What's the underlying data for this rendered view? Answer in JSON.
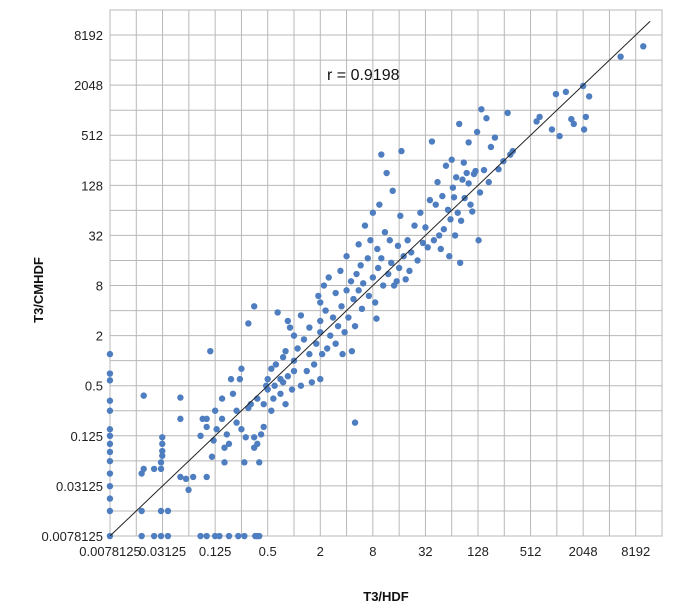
{
  "chart_data": {
    "type": "scatter",
    "title": "",
    "xlabel": "T3/HDF",
    "ylabel": "T3/CMHDF",
    "x_scale": "log2",
    "y_scale": "log2",
    "xlim": [
      0.0078125,
      16384
    ],
    "ylim": [
      0.0078125,
      16384
    ],
    "grid": true,
    "legend": "none",
    "x_ticks": [
      0.0078125,
      0.03125,
      0.125,
      0.5,
      2,
      8,
      32,
      128,
      512,
      2048,
      8192
    ],
    "x_tick_labels": [
      "0.0078125",
      "0.03125",
      "0.125",
      "0.5",
      "2",
      "8",
      "32",
      "128",
      "512",
      "2048",
      "8192"
    ],
    "y_ticks": [
      0.0078125,
      0.03125,
      0.125,
      0.5,
      2,
      8,
      32,
      128,
      512,
      2048,
      8192
    ],
    "y_tick_labels": [
      "0.0078125",
      "0.03125",
      "0.125",
      "0.5",
      "2",
      "8",
      "32",
      "128",
      "512",
      "2048",
      "8192"
    ],
    "annotation": "r = 0.9198",
    "colors": {
      "points": "#4f7ec0",
      "trend": "#222222",
      "grid": "#b8b8b8"
    },
    "trendline": {
      "x": [
        0.0078125,
        12000
      ],
      "y": [
        0.0078125,
        12000
      ]
    },
    "points": [
      [
        0.0078,
        0.0078
      ],
      [
        0.0078,
        0.0156
      ],
      [
        0.0078,
        0.022
      ],
      [
        0.0078,
        0.031
      ],
      [
        0.0078,
        0.044
      ],
      [
        0.0078,
        0.062
      ],
      [
        0.0078,
        0.08
      ],
      [
        0.0078,
        0.1
      ],
      [
        0.0078,
        0.125
      ],
      [
        0.0078,
        0.15
      ],
      [
        0.0078,
        0.25
      ],
      [
        0.0078,
        0.33
      ],
      [
        0.0078,
        0.58
      ],
      [
        0.0078,
        0.7
      ],
      [
        0.0078,
        1.2
      ],
      [
        0.018,
        0.0078
      ],
      [
        0.025,
        0.0078
      ],
      [
        0.03,
        0.0078
      ],
      [
        0.036,
        0.0078
      ],
      [
        0.018,
        0.0156
      ],
      [
        0.03,
        0.0156
      ],
      [
        0.036,
        0.0156
      ],
      [
        0.018,
        0.044
      ],
      [
        0.019,
        0.05
      ],
      [
        0.025,
        0.05
      ],
      [
        0.03,
        0.05
      ],
      [
        0.03,
        0.06
      ],
      [
        0.031,
        0.072
      ],
      [
        0.031,
        0.082
      ],
      [
        0.031,
        0.1
      ],
      [
        0.031,
        0.12
      ],
      [
        0.019,
        0.38
      ],
      [
        0.05,
        0.04
      ],
      [
        0.05,
        0.2
      ],
      [
        0.05,
        0.36
      ],
      [
        0.058,
        0.038
      ],
      [
        0.062,
        0.028
      ],
      [
        0.07,
        0.04
      ],
      [
        0.085,
        0.125
      ],
      [
        0.09,
        0.2
      ],
      [
        0.085,
        0.0078
      ],
      [
        0.1,
        0.0078
      ],
      [
        0.125,
        0.0078
      ],
      [
        0.14,
        0.0078
      ],
      [
        0.18,
        0.0078
      ],
      [
        0.23,
        0.0078
      ],
      [
        0.27,
        0.0078
      ],
      [
        0.36,
        0.0078
      ],
      [
        0.38,
        0.0078
      ],
      [
        0.4,
        0.0078
      ],
      [
        0.1,
        0.04
      ],
      [
        0.1,
        0.16
      ],
      [
        0.1,
        0.2
      ],
      [
        0.11,
        1.3
      ],
      [
        0.115,
        0.07
      ],
      [
        0.12,
        0.11
      ],
      [
        0.125,
        0.25
      ],
      [
        0.13,
        0.15
      ],
      [
        0.15,
        0.35
      ],
      [
        0.15,
        0.2
      ],
      [
        0.16,
        0.09
      ],
      [
        0.16,
        0.06
      ],
      [
        0.17,
        0.13
      ],
      [
        0.18,
        0.1
      ],
      [
        0.19,
        0.6
      ],
      [
        0.2,
        0.4
      ],
      [
        0.22,
        0.18
      ],
      [
        0.22,
        0.25
      ],
      [
        0.24,
        0.6
      ],
      [
        0.25,
        0.15
      ],
      [
        0.25,
        0.8
      ],
      [
        0.27,
        0.06
      ],
      [
        0.28,
        0.12
      ],
      [
        0.3,
        0.27
      ],
      [
        0.3,
        2.8
      ],
      [
        0.32,
        0.3
      ],
      [
        0.35,
        0.09
      ],
      [
        0.35,
        0.12
      ],
      [
        0.35,
        4.5
      ],
      [
        0.38,
        0.35
      ],
      [
        0.38,
        0.1
      ],
      [
        0.4,
        0.06
      ],
      [
        0.42,
        0.13
      ],
      [
        0.45,
        0.16
      ],
      [
        0.45,
        0.3
      ],
      [
        0.48,
        0.5
      ],
      [
        0.5,
        0.45
      ],
      [
        0.5,
        0.6
      ],
      [
        0.55,
        0.25
      ],
      [
        0.55,
        0.8
      ],
      [
        0.58,
        0.35
      ],
      [
        0.6,
        0.5
      ],
      [
        0.62,
        0.9
      ],
      [
        0.65,
        3.8
      ],
      [
        0.7,
        0.6
      ],
      [
        0.7,
        0.4
      ],
      [
        0.75,
        0.55
      ],
      [
        0.75,
        1.1
      ],
      [
        0.8,
        0.3
      ],
      [
        0.8,
        1.3
      ],
      [
        0.85,
        0.65
      ],
      [
        0.85,
        3
      ],
      [
        0.9,
        2.5
      ],
      [
        0.95,
        0.45
      ],
      [
        1,
        1
      ],
      [
        1,
        0.75
      ],
      [
        1,
        2
      ],
      [
        1.1,
        1.4
      ],
      [
        1.2,
        0.5
      ],
      [
        1.2,
        3.5
      ],
      [
        1.3,
        1.8
      ],
      [
        1.4,
        0.75
      ],
      [
        1.5,
        1.2
      ],
      [
        1.5,
        2.5
      ],
      [
        1.6,
        0.55
      ],
      [
        1.7,
        0.9
      ],
      [
        1.8,
        1.6
      ],
      [
        1.9,
        6
      ],
      [
        2,
        2.2
      ],
      [
        2,
        3
      ],
      [
        2,
        0.6
      ],
      [
        2,
        5
      ],
      [
        2.1,
        1.2
      ],
      [
        2.2,
        8
      ],
      [
        2.3,
        4
      ],
      [
        2.4,
        1.4
      ],
      [
        2.5,
        10
      ],
      [
        2.6,
        2
      ],
      [
        2.8,
        3.3
      ],
      [
        3,
        6.5
      ],
      [
        3,
        1.6
      ],
      [
        3.2,
        2.6
      ],
      [
        3.4,
        12
      ],
      [
        3.5,
        4.5
      ],
      [
        3.6,
        1.2
      ],
      [
        3.8,
        2.2
      ],
      [
        4,
        7
      ],
      [
        4,
        18
      ],
      [
        4.2,
        3.3
      ],
      [
        4.5,
        9
      ],
      [
        4.6,
        1.3
      ],
      [
        4.8,
        5.5
      ],
      [
        5,
        0.18
      ],
      [
        5,
        2.6
      ],
      [
        5.2,
        11
      ],
      [
        5.5,
        7
      ],
      [
        5.5,
        25
      ],
      [
        5.8,
        14
      ],
      [
        6,
        4.2
      ],
      [
        6.2,
        8.5
      ],
      [
        6.5,
        42
      ],
      [
        7,
        17
      ],
      [
        7.2,
        6
      ],
      [
        7.5,
        28
      ],
      [
        8,
        10
      ],
      [
        8,
        60
      ],
      [
        8.5,
        5
      ],
      [
        8.8,
        3.2
      ],
      [
        9,
        22
      ],
      [
        9.2,
        13
      ],
      [
        9.5,
        75
      ],
      [
        10,
        300
      ],
      [
        10,
        17
      ],
      [
        10.5,
        8
      ],
      [
        11,
        35
      ],
      [
        11.5,
        180
      ],
      [
        12,
        11
      ],
      [
        12.5,
        28
      ],
      [
        13,
        15
      ],
      [
        13.5,
        110
      ],
      [
        14,
        8
      ],
      [
        15,
        9
      ],
      [
        15.5,
        24
      ],
      [
        16,
        13
      ],
      [
        16.5,
        55
      ],
      [
        17,
        330
      ],
      [
        18,
        18
      ],
      [
        19,
        9.5
      ],
      [
        20,
        28
      ],
      [
        21,
        12
      ],
      [
        22,
        20
      ],
      [
        24,
        42
      ],
      [
        26,
        16
      ],
      [
        28,
        60
      ],
      [
        30,
        26
      ],
      [
        32,
        40
      ],
      [
        34,
        23
      ],
      [
        36,
        85
      ],
      [
        38,
        430
      ],
      [
        40,
        28
      ],
      [
        42,
        75
      ],
      [
        44,
        140
      ],
      [
        46,
        32
      ],
      [
        48,
        22
      ],
      [
        50,
        95
      ],
      [
        52,
        38
      ],
      [
        55,
        220
      ],
      [
        58,
        65
      ],
      [
        60,
        18
      ],
      [
        62,
        50
      ],
      [
        64,
        260
      ],
      [
        66,
        120
      ],
      [
        68,
        92
      ],
      [
        70,
        32
      ],
      [
        72,
        160
      ],
      [
        75,
        60
      ],
      [
        78,
        700
      ],
      [
        80,
        15
      ],
      [
        82,
        48
      ],
      [
        85,
        150
      ],
      [
        88,
        240
      ],
      [
        90,
        90
      ],
      [
        95,
        180
      ],
      [
        100,
        135
      ],
      [
        100,
        420
      ],
      [
        105,
        75
      ],
      [
        110,
        62
      ],
      [
        115,
        175
      ],
      [
        120,
        190
      ],
      [
        125,
        560
      ],
      [
        130,
        28
      ],
      [
        135,
        105
      ],
      [
        140,
        1050
      ],
      [
        150,
        195
      ],
      [
        160,
        820
      ],
      [
        170,
        140
      ],
      [
        180,
        370
      ],
      [
        200,
        480
      ],
      [
        220,
        200
      ],
      [
        250,
        250
      ],
      [
        280,
        950
      ],
      [
        300,
        300
      ],
      [
        320,
        330
      ],
      [
        600,
        750
      ],
      [
        650,
        850
      ],
      [
        900,
        600
      ],
      [
        1000,
        1600
      ],
      [
        1100,
        500
      ],
      [
        1300,
        1700
      ],
      [
        1500,
        800
      ],
      [
        1600,
        700
      ],
      [
        2048,
        2000
      ],
      [
        2100,
        600
      ],
      [
        2200,
        850
      ],
      [
        2400,
        1500
      ],
      [
        5500,
        4500
      ],
      [
        10000,
        6000
      ]
    ]
  }
}
